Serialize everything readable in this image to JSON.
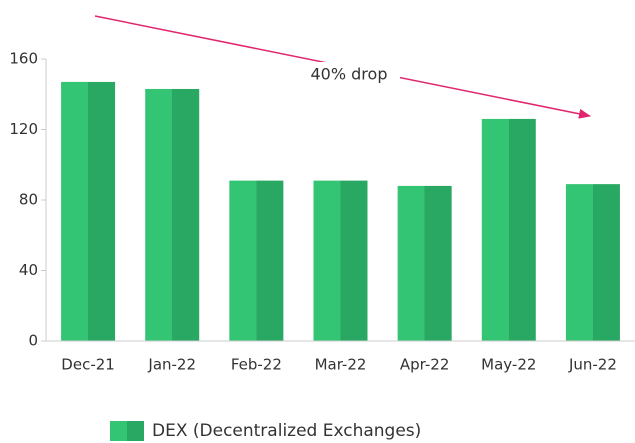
{
  "chart_data": {
    "type": "bar",
    "categories": [
      "Dec-21",
      "Jan-22",
      "Feb-22",
      "Mar-22",
      "Apr-22",
      "May-22",
      "Jun-22"
    ],
    "series": [
      {
        "name": "DEX (Decentralized Exchanges)",
        "colors": [
          "#33c474",
          "#28a862"
        ],
        "values": [
          147,
          143,
          91,
          91,
          88,
          126,
          89
        ]
      }
    ],
    "ylim": [
      0,
      160
    ],
    "yticks": [
      0,
      40,
      80,
      120,
      160
    ],
    "annotation": "40% drop",
    "annotation_color": "#e0266e"
  }
}
